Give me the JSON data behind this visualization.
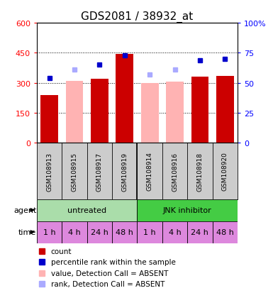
{
  "title": "GDS2081 / 38932_at",
  "samples": [
    "GSM108913",
    "GSM108915",
    "GSM108917",
    "GSM108919",
    "GSM108914",
    "GSM108916",
    "GSM108918",
    "GSM108920"
  ],
  "bar_values": [
    240,
    310,
    320,
    445,
    300,
    305,
    330,
    335
  ],
  "bar_colors": [
    "#cc0000",
    "#ffb3b3",
    "#cc0000",
    "#cc0000",
    "#ffb3b3",
    "#ffb3b3",
    "#cc0000",
    "#cc0000"
  ],
  "rank_values": [
    54,
    61,
    65,
    73,
    57,
    61,
    69,
    70
  ],
  "rank_colors": [
    "#0000cc",
    "#aaaaff",
    "#0000cc",
    "#0000cc",
    "#aaaaff",
    "#aaaaff",
    "#0000cc",
    "#0000cc"
  ],
  "agent_labels": [
    "untreated",
    "JNK inhibitor"
  ],
  "agent_colors": [
    "#aaddaa",
    "#44cc44"
  ],
  "time_labels": [
    "1 h",
    "4 h",
    "24 h",
    "48 h",
    "1 h",
    "4 h",
    "24 h",
    "48 h"
  ],
  "time_color": "#dd88dd",
  "ylim_left": [
    0,
    600
  ],
  "ylim_right": [
    0,
    100
  ],
  "yticks_left": [
    0,
    150,
    300,
    450,
    600
  ],
  "yticks_right": [
    0,
    25,
    50,
    75,
    100
  ],
  "ytick_labels_right": [
    "0",
    "25",
    "50",
    "75",
    "100%"
  ],
  "legend_items": [
    {
      "color": "#cc0000",
      "label": "count"
    },
    {
      "color": "#0000cc",
      "label": "percentile rank within the sample"
    },
    {
      "color": "#ffb3b3",
      "label": "value, Detection Call = ABSENT"
    },
    {
      "color": "#aaaaff",
      "label": "rank, Detection Call = ABSENT"
    }
  ],
  "bar_width": 0.7,
  "title_fontsize": 11,
  "tick_fontsize": 8,
  "label_fontsize": 8
}
